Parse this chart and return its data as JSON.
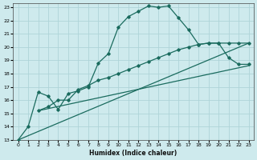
{
  "xlabel": "Humidex (Indice chaleur)",
  "bg_color": "#ceeaed",
  "grid_color": "#aed4d8",
  "line_color": "#1a6b5e",
  "xlim": [
    -0.5,
    23.5
  ],
  "ylim": [
    13,
    23.3
  ],
  "xticks": [
    0,
    1,
    2,
    3,
    4,
    5,
    6,
    7,
    8,
    9,
    10,
    11,
    12,
    13,
    14,
    15,
    16,
    17,
    18,
    19,
    20,
    21,
    22,
    23
  ],
  "yticks": [
    13,
    14,
    15,
    16,
    17,
    18,
    19,
    20,
    21,
    22,
    23
  ],
  "curve1_x": [
    0,
    1,
    2,
    3,
    4,
    5,
    6,
    7,
    8,
    9,
    10,
    11,
    12,
    13,
    14,
    15,
    16,
    17,
    18,
    19,
    20,
    21,
    22,
    23
  ],
  "curve1_y": [
    13,
    14,
    16.6,
    16.3,
    15.3,
    16.5,
    16.7,
    17.0,
    18.8,
    19.5,
    21.5,
    22.3,
    22.7,
    23.1,
    23.0,
    23.1,
    22.2,
    21.3,
    20.2,
    20.3,
    20.3,
    19.2,
    18.7,
    18.7
  ],
  "curve2_x": [
    2,
    3,
    4,
    5,
    6,
    7,
    8,
    9,
    10,
    11,
    12,
    13,
    14,
    15,
    16,
    17,
    18,
    19,
    20,
    21,
    22,
    23
  ],
  "curve2_y": [
    15.2,
    15.5,
    16.0,
    16.0,
    16.8,
    17.1,
    17.5,
    17.7,
    18.0,
    18.3,
    18.6,
    18.9,
    19.2,
    19.5,
    19.8,
    20.0,
    20.2,
    20.3,
    20.3,
    20.3,
    20.3,
    20.3
  ],
  "curve3_x": [
    2,
    23
  ],
  "curve3_y": [
    15.2,
    18.6
  ],
  "curve4_x": [
    0,
    23
  ],
  "curve4_y": [
    13,
    20.3
  ]
}
